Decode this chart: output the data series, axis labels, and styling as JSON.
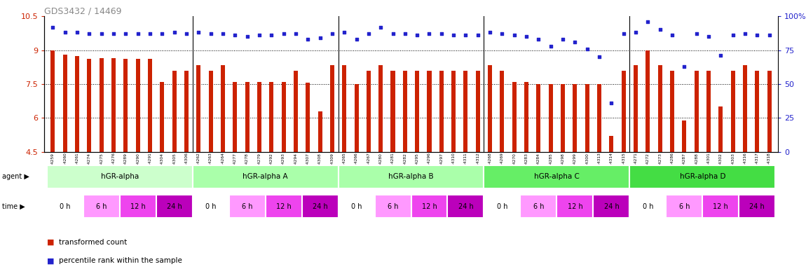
{
  "title": "GDS3432 / 14469",
  "ylim_left": [
    4.5,
    10.5
  ],
  "ylim_right": [
    0,
    100
  ],
  "yticks_left": [
    4.5,
    6.0,
    7.5,
    9.0,
    10.5
  ],
  "ytick_labels_left": [
    "4.5",
    "6",
    "7.5",
    "9",
    "10.5"
  ],
  "yticks_right": [
    0,
    25,
    50,
    75,
    100
  ],
  "ytick_labels_right": [
    "0",
    "25",
    "50",
    "75",
    "100%"
  ],
  "bar_color": "#CC2200",
  "dot_color": "#2222CC",
  "sample_ids": [
    "GSM154259",
    "GSM154260",
    "GSM154261",
    "GSM154274",
    "GSM154275",
    "GSM154276",
    "GSM154289",
    "GSM154290",
    "GSM154291",
    "GSM154304",
    "GSM154305",
    "GSM154306",
    "GSM154262",
    "GSM154263",
    "GSM154264",
    "GSM154277",
    "GSM154278",
    "GSM154279",
    "GSM154292",
    "GSM154293",
    "GSM154294",
    "GSM154307",
    "GSM154308",
    "GSM154309",
    "GSM154265",
    "GSM154266",
    "GSM154267",
    "GSM154280",
    "GSM154281",
    "GSM154282",
    "GSM154295",
    "GSM154296",
    "GSM154297",
    "GSM154310",
    "GSM154311",
    "GSM154312",
    "GSM154268",
    "GSM154269",
    "GSM154270",
    "GSM154283",
    "GSM154284",
    "GSM154285",
    "GSM154298",
    "GSM154299",
    "GSM154300",
    "GSM154313",
    "GSM154314",
    "GSM154315",
    "GSM154271",
    "GSM154272",
    "GSM154273",
    "GSM154286",
    "GSM154287",
    "GSM154288",
    "GSM154301",
    "GSM154302",
    "GSM154303",
    "GSM154316",
    "GSM154317",
    "GSM154318"
  ],
  "bar_heights": [
    9.0,
    8.8,
    8.75,
    8.6,
    8.65,
    8.65,
    8.6,
    8.6,
    8.6,
    7.6,
    8.1,
    8.1,
    8.35,
    8.1,
    8.35,
    7.6,
    7.6,
    7.6,
    7.6,
    7.6,
    8.1,
    7.55,
    6.3,
    8.35,
    8.35,
    7.5,
    8.1,
    8.35,
    8.1,
    8.1,
    8.1,
    8.1,
    8.1,
    8.1,
    8.1,
    8.1,
    8.35,
    8.1,
    7.6,
    7.6,
    7.5,
    7.5,
    7.5,
    7.5,
    7.5,
    7.5,
    5.2,
    8.1,
    8.35,
    9.0,
    8.35,
    8.1,
    5.9,
    8.1,
    8.1,
    6.5,
    8.1,
    8.35,
    8.1,
    8.1
  ],
  "percentile_ranks": [
    92,
    88,
    88,
    87,
    87,
    87,
    87,
    87,
    87,
    87,
    88,
    87,
    88,
    87,
    87,
    86,
    85,
    86,
    86,
    87,
    87,
    83,
    84,
    87,
    88,
    83,
    87,
    92,
    87,
    87,
    86,
    87,
    87,
    86,
    86,
    86,
    88,
    87,
    86,
    85,
    83,
    78,
    83,
    81,
    76,
    70,
    36,
    87,
    88,
    96,
    90,
    86,
    63,
    87,
    85,
    71,
    86,
    87,
    86,
    86
  ],
  "groups": [
    {
      "label": "hGR-alpha",
      "start": 0,
      "end": 12,
      "color": "#CCFFCC"
    },
    {
      "label": "hGR-alpha A",
      "start": 12,
      "end": 24,
      "color": "#AAFFAA"
    },
    {
      "label": "hGR-alpha B",
      "start": 24,
      "end": 36,
      "color": "#AAFFAA"
    },
    {
      "label": "hGR-alpha C",
      "start": 36,
      "end": 48,
      "color": "#66EE66"
    },
    {
      "label": "hGR-alpha D",
      "start": 48,
      "end": 60,
      "color": "#44DD44"
    }
  ],
  "time_colors": [
    "#FFFFFF",
    "#FF99FF",
    "#EE44EE",
    "#BB00BB"
  ],
  "time_labels": [
    "0 h",
    "6 h",
    "12 h",
    "24 h"
  ],
  "legend_bar_color": "#CC2200",
  "legend_dot_color": "#2222CC",
  "legend_bar_label": "transformed count",
  "legend_dot_label": "percentile rank within the sample"
}
